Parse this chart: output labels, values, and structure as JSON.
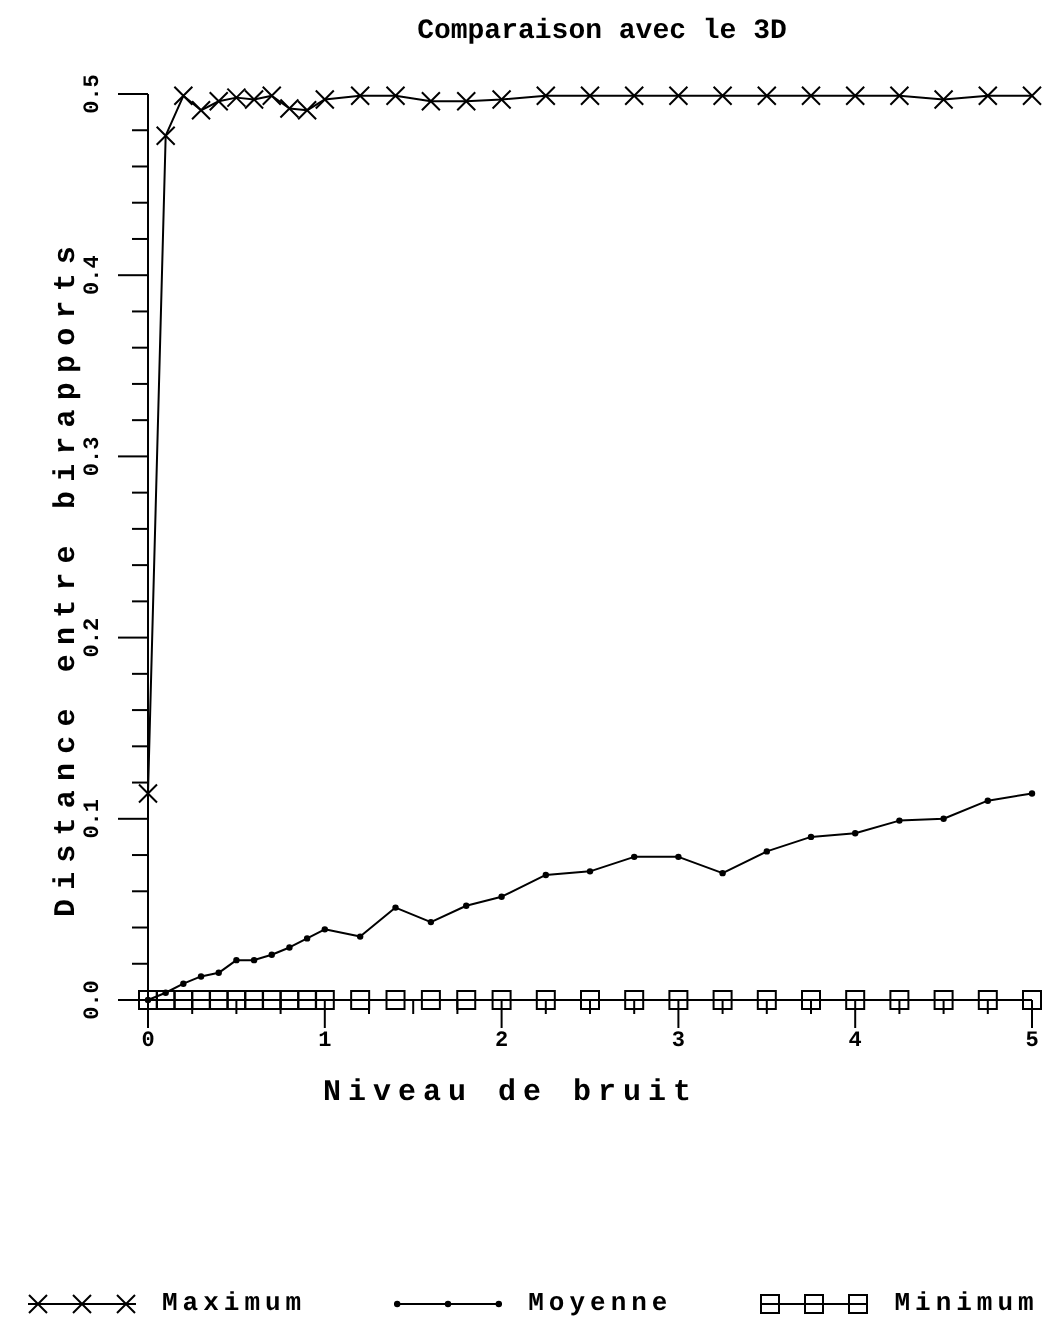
{
  "chart_data": {
    "type": "line",
    "title": "Comparaison avec le 3D",
    "xlabel": "Niveau de bruit",
    "ylabel": "Distance entre birapports",
    "x": [
      0,
      0.1,
      0.2,
      0.3,
      0.4,
      0.5,
      0.6,
      0.7,
      0.8,
      0.9,
      1,
      1.2,
      1.4,
      1.6,
      1.8,
      2,
      2.25,
      2.5,
      2.75,
      3,
      3.25,
      3.5,
      3.75,
      4,
      4.25,
      4.5,
      4.75,
      5
    ],
    "series": [
      {
        "name": "Maximum",
        "color": "#000000",
        "marker": "cross",
        "values": [
          0.114,
          0.477,
          0.499,
          0.491,
          0.496,
          0.498,
          0.497,
          0.499,
          0.492,
          0.491,
          0.497,
          0.499,
          0.499,
          0.496,
          0.496,
          0.497,
          0.499,
          0.499,
          0.499,
          0.499,
          0.499,
          0.499,
          0.499,
          0.499,
          0.499,
          0.497,
          0.499,
          0.499
        ]
      },
      {
        "name": "Moyenne",
        "color": "#000000",
        "marker": "circle",
        "values": [
          0,
          0.004,
          0.009,
          0.013,
          0.015,
          0.022,
          0.022,
          0.025,
          0.029,
          0.034,
          0.039,
          0.035,
          0.051,
          0.043,
          0.052,
          0.057,
          0.069,
          0.071,
          0.079,
          0.079,
          0.07,
          0.082,
          0.09,
          0.092,
          0.099,
          0.1,
          0.11,
          0.114
        ]
      },
      {
        "name": "Minimum",
        "color": "#000000",
        "marker": "square",
        "values": [
          0,
          0,
          0,
          0,
          0,
          0,
          0,
          0,
          0,
          0,
          0,
          0,
          0,
          0,
          0,
          0,
          0,
          0,
          0,
          0,
          0,
          0,
          0,
          0,
          0,
          0,
          0,
          0
        ]
      }
    ],
    "xlim": [
      0,
      5
    ],
    "xticks": [
      0,
      {
        "value": 0.25,
        "label": null
      },
      {
        "value": 0.5,
        "label": null
      },
      {
        "value": 0.75,
        "label": null
      },
      1,
      {
        "value": 1.25,
        "label": null
      },
      {
        "value": 1.5,
        "label": null
      },
      {
        "value": 1.75,
        "label": null
      },
      2,
      {
        "value": 2.25,
        "label": null
      },
      {
        "value": 2.5,
        "label": null
      },
      {
        "value": 2.75,
        "label": null
      },
      3,
      {
        "value": 3.25,
        "label": null
      },
      {
        "value": 3.5,
        "label": null
      },
      {
        "value": 3.75,
        "label": null
      },
      4,
      {
        "value": 4.25,
        "label": null
      },
      {
        "value": 4.5,
        "label": null
      },
      {
        "value": 4.75,
        "label": null
      },
      5
    ],
    "ylim": [
      0,
      0.5
    ],
    "yticks": [
      {
        "value": 0,
        "label": "0.0"
      },
      {
        "value": 0.02,
        "label": null
      },
      {
        "value": 0.04,
        "label": null
      },
      {
        "value": 0.06,
        "label": null
      },
      {
        "value": 0.08,
        "label": null
      },
      0.1,
      {
        "value": 0.12,
        "label": null
      },
      {
        "value": 0.14,
        "label": null
      },
      {
        "value": 0.16,
        "label": null
      },
      {
        "value": 0.18,
        "label": null
      },
      0.2,
      {
        "value": 0.22,
        "label": null
      },
      {
        "value": 0.24,
        "label": null
      },
      {
        "value": 0.26,
        "label": null
      },
      {
        "value": 0.28,
        "label": null
      },
      0.3,
      {
        "value": 0.32,
        "label": null
      },
      {
        "value": 0.34,
        "label": null
      },
      {
        "value": 0.36,
        "label": null
      },
      {
        "value": 0.38,
        "label": null
      },
      0.4,
      {
        "value": 0.42,
        "label": null
      },
      {
        "value": 0.44,
        "label": null
      },
      {
        "value": 0.46,
        "label": null
      },
      {
        "value": 0.48,
        "label": null
      },
      0.5
    ],
    "legend": "bottom"
  }
}
